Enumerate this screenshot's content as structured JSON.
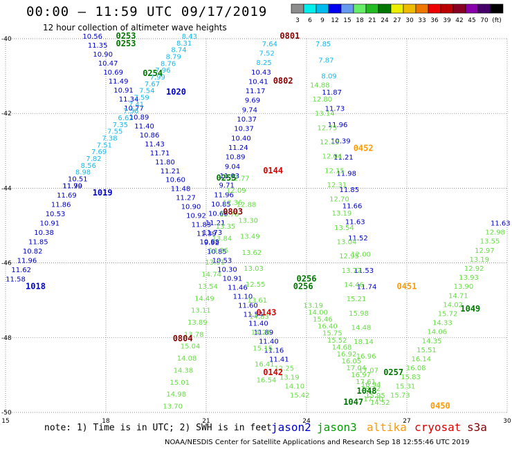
{
  "chart_data": {
    "type": "scatter",
    "title": "00:00 — 11:59 UTC 09/17/2019",
    "subtitle": "12 hour collection of altimeter wave heights",
    "xlim": [
      15,
      30
    ],
    "ylim": [
      -50,
      -40
    ],
    "x_ticks": [
      "15",
      "18",
      "21",
      "24",
      "27",
      "30"
    ],
    "y_ticks": [
      "-40",
      "-42",
      "-44",
      "-46",
      "-48",
      "-50"
    ],
    "grid": true,
    "colorbar": {
      "labels": [
        "3",
        "6",
        "9",
        "12",
        "15",
        "18",
        "21",
        "24",
        "27",
        "30",
        "33",
        "36",
        "39",
        "42",
        "45",
        "70",
        "(ft)"
      ],
      "colors": [
        "#8c8c8c",
        "#00eeee",
        "#00bbee",
        "#0000ee",
        "#6699ee",
        "#66ee66",
        "#22bb22",
        "#007700",
        "#eeee00",
        "#eebb00",
        "#ee7700",
        "#ee0000",
        "#bb0000",
        "#880022",
        "#8800aa",
        "#440066",
        "#000000"
      ]
    },
    "series_colors": {
      "jason2": "#0000cc",
      "jason3": "#00a000",
      "altika": "#ff9900",
      "cryosat": "#dd0000",
      "s3a": "#880000"
    },
    "tracks": [
      {
        "name": "t1",
        "from": [
          17.6,
          -40.0
        ],
        "to": [
          23.8,
          -49.6
        ],
        "values": [
          "10.56",
          "11.35",
          "10.90",
          "10.47",
          "10.69",
          "11.49",
          "10.91",
          "11.34",
          "10.77",
          "10.89",
          "11.40",
          "10.86",
          "11.43",
          "11.71",
          "11.80",
          "11.21",
          "10.60",
          "11.48",
          "11.27",
          "10.90",
          "10.92",
          "11.83",
          "11.39",
          "9.92",
          "10.85",
          "10.53",
          "10.30",
          "10.91",
          "11.46",
          "11.10",
          "11.60",
          "11.54",
          "11.40",
          "11.89",
          "11.40",
          "11.16",
          "11.41",
          "12.25",
          "13.19",
          "14.10",
          "15.42"
        ]
      },
      {
        "name": "t2",
        "from": [
          20.5,
          -40.0
        ],
        "to": [
          17.0,
          -44.0
        ],
        "values": [
          "8.43",
          "8.31",
          "8.74",
          "8.79",
          "8.76",
          "7.96",
          "7.99",
          "7.67",
          "7.54",
          "7.59",
          "7.41",
          "7.56",
          "6.62",
          "7.35",
          "7.55",
          "7.38",
          "7.51",
          "7.69",
          "7.82",
          "8.56",
          "8.98",
          "10.51",
          "11.99"
        ]
      },
      {
        "name": "t3",
        "from": [
          17.0,
          -44.0
        ],
        "to": [
          15.3,
          -46.5
        ],
        "values": [
          "11.70",
          "11.69",
          "11.86",
          "10.53",
          "10.91",
          "10.38",
          "11.85",
          "10.82",
          "11.96",
          "11.62",
          "11.58"
        ]
      },
      {
        "name": "t4",
        "from": [
          22.9,
          -40.2
        ],
        "to": [
          21.1,
          -45.5
        ],
        "values": [
          "7.64",
          "7.52",
          "8.25",
          "10.43",
          "10.41",
          "11.17",
          "9.69",
          "9.74",
          "10.37",
          "10.37",
          "10.40",
          "11.24",
          "10.89",
          "9.04",
          "11.03",
          "9.71",
          "11.96",
          "10.85",
          "10.66",
          "11.21",
          "11.73",
          "10.88"
        ]
      },
      {
        "name": "t5",
        "from": [
          24.5,
          -40.2
        ],
        "to": [
          25.8,
          -46.7
        ],
        "values": [
          "7.85",
          "7.87",
          "8.09",
          "11.87",
          "11.73",
          "11.96",
          "10.39",
          "11.21",
          "11.98",
          "11.85",
          "11.66",
          "11.63",
          "11.52",
          "12.00",
          "11.53",
          "11.74"
        ]
      },
      {
        "name": "t6",
        "from": [
          24.4,
          -41.3
        ],
        "to": [
          26.0,
          -49.7
        ],
        "values": [
          "14.88",
          "12.80",
          "13.14",
          "12.75",
          "12.13",
          "12.04",
          "12.15",
          "12.31",
          "12.70",
          "13.19",
          "13.54",
          "13.04",
          "12.95",
          "13.72",
          "14.46",
          "15.21",
          "15.98",
          "14.48",
          "18.14",
          "16.96",
          "17.07",
          "16.94",
          "17.70"
        ]
      },
      {
        "name": "t7",
        "from": [
          22.0,
          -43.8
        ],
        "to": [
          20.0,
          -49.9
        ],
        "values": [
          "12.77",
          "12.09",
          "12.36",
          "13.76",
          "13.35",
          "13.84",
          "14.36",
          "13.01",
          "14.74",
          "13.54",
          "14.49",
          "13.11",
          "13.89",
          "13.78",
          "15.04",
          "14.08",
          "14.38",
          "15.01",
          "14.98",
          "13.70"
        ]
      },
      {
        "name": "t8",
        "from": [
          22.2,
          -44.5
        ],
        "to": [
          22.8,
          -49.2
        ],
        "values": [
          "12.88",
          "13.30",
          "13.49",
          "13.62",
          "13.03",
          "12.55",
          "13.61",
          "14.83",
          "14.26",
          "15.15",
          "16.41",
          "16.54"
        ]
      },
      {
        "name": "t9",
        "from": [
          29.8,
          -45.0
        ],
        "to": [
          26.8,
          -49.6
        ],
        "values": [
          "11.63",
          "12.98",
          "13.55",
          "12.97",
          "13.19",
          "12.92",
          "13.93",
          "13.90",
          "14.71",
          "14.02",
          "15.72",
          "14.33",
          "14.06",
          "14.35",
          "15.51",
          "16.14",
          "16.08",
          "15.83",
          "15.31",
          "15.73"
        ]
      },
      {
        "name": "t10",
        "from": [
          24.2,
          -47.2
        ],
        "to": [
          26.2,
          -49.8
        ],
        "values": [
          "13.19",
          "14.00",
          "15.46",
          "16.40",
          "15.75",
          "15.52",
          "14.68",
          "16.92",
          "16.05",
          "17.04",
          "16.97",
          "17.61",
          "18.32",
          "15.95",
          "14.52"
        ]
      }
    ],
    "labels": [
      {
        "text": "0253",
        "x": 18.6,
        "y": -40.0,
        "color": "#007700"
      },
      {
        "text": "0253",
        "x": 18.6,
        "y": -40.2,
        "color": "#007700"
      },
      {
        "text": "0254",
        "x": 19.4,
        "y": -41.0,
        "color": "#007700"
      },
      {
        "text": "1020",
        "x": 20.1,
        "y": -41.5,
        "color": "#0000cc"
      },
      {
        "text": "1019",
        "x": 17.9,
        "y": -44.2,
        "color": "#0000cc"
      },
      {
        "text": "1018",
        "x": 15.9,
        "y": -46.7,
        "color": "#0000cc"
      },
      {
        "text": "0801",
        "x": 23.5,
        "y": -40.0,
        "color": "#880000"
      },
      {
        "text": "0802",
        "x": 23.3,
        "y": -41.2,
        "color": "#880000"
      },
      {
        "text": "0452",
        "x": 25.7,
        "y": -43.0,
        "color": "#ff9900"
      },
      {
        "text": "0144",
        "x": 23.0,
        "y": -43.6,
        "color": "#dd0000"
      },
      {
        "text": "0255",
        "x": 21.6,
        "y": -43.8,
        "color": "#007700"
      },
      {
        "text": "0803",
        "x": 21.8,
        "y": -44.7,
        "color": "#880000"
      },
      {
        "text": "0256",
        "x": 24.0,
        "y": -46.5,
        "color": "#007700"
      },
      {
        "text": "0256",
        "x": 23.9,
        "y": -46.7,
        "color": "#007700"
      },
      {
        "text": "0451",
        "x": 27.0,
        "y": -46.7,
        "color": "#ff9900"
      },
      {
        "text": "0143",
        "x": 22.8,
        "y": -47.4,
        "color": "#dd0000"
      },
      {
        "text": "1049",
        "x": 28.9,
        "y": -47.3,
        "color": "#007700"
      },
      {
        "text": "0804",
        "x": 20.3,
        "y": -48.1,
        "color": "#880000"
      },
      {
        "text": "0142",
        "x": 23.0,
        "y": -49.0,
        "color": "#dd0000"
      },
      {
        "text": "0257",
        "x": 26.6,
        "y": -49.0,
        "color": "#007700"
      },
      {
        "text": "1048",
        "x": 25.8,
        "y": -49.5,
        "color": "#007700"
      },
      {
        "text": "1047",
        "x": 25.4,
        "y": -49.8,
        "color": "#007700"
      },
      {
        "text": "0450",
        "x": 28.0,
        "y": -49.9,
        "color": "#ff9900"
      }
    ]
  },
  "note": "note: 1) Time is in UTC; 2) SWH is in feet",
  "legend": [
    {
      "name": "jason2",
      "color": "#0000cc"
    },
    {
      "name": "jason3",
      "color": "#00a000"
    },
    {
      "name": "altika",
      "color": "#ff9900"
    },
    {
      "name": "cryosat",
      "color": "#dd0000"
    },
    {
      "name": "s3a",
      "color": "#880000"
    }
  ],
  "footer": "NOAA/NESDIS Center for Satellite Applications and Research   Sep 18 12:55:46 UTC 2019"
}
